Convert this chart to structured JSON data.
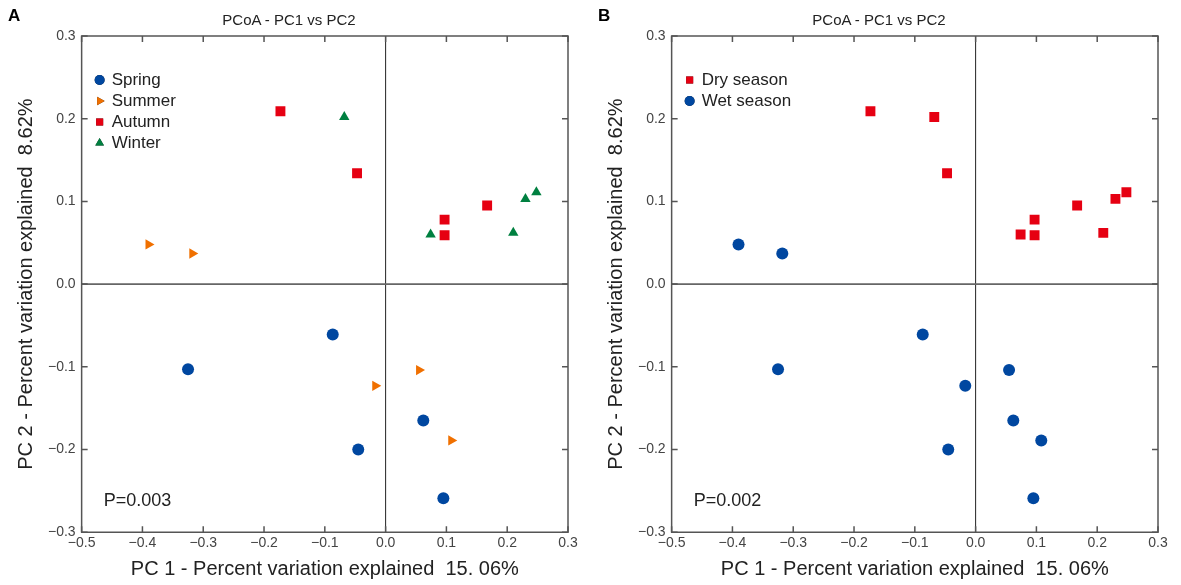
{
  "chart_data": [
    {
      "type": "scatter",
      "title": "PCoA - PC1 vs PC2",
      "xlabel": "PC 1 - Percent variation explained  15. 06%",
      "ylabel": "PC 2 - Percent variation explained  8.62%",
      "annotations": [
        "A",
        "P=0.003"
      ],
      "legend": "top left",
      "grid": false,
      "xlim": [
        -0.5,
        0.3
      ],
      "xticks": [
        {
          "value": -0.5,
          "label": "−0.5"
        },
        {
          "value": -0.4,
          "label": "−0.4"
        },
        {
          "value": -0.3,
          "label": "−0.3"
        },
        {
          "value": -0.2,
          "label": "−0.2"
        },
        {
          "value": -0.1,
          "label": "−0.1"
        },
        {
          "value": 0,
          "label": "0.0"
        },
        0.1,
        0.2,
        0.3
      ],
      "ylim": [
        -0.3,
        0.3
      ],
      "yticks": [
        {
          "value": -0.3,
          "label": "−0.3"
        },
        {
          "value": -0.2,
          "label": "−0.2"
        },
        {
          "value": -0.1,
          "label": "−0.1"
        },
        {
          "value": 0,
          "label": "0.0"
        },
        0.1,
        0.2,
        0.3
      ],
      "ref_lines": [
        {
          "axis": "x",
          "value": 0
        },
        {
          "axis": "y",
          "value": 0
        }
      ],
      "series": [
        {
          "name": "Spring",
          "color": "#0047a0",
          "marker": "circle",
          "x": [
            -0.325,
            -0.087,
            -0.045,
            0.062,
            0.095
          ],
          "values": [
            -0.103,
            -0.061,
            -0.2,
            -0.165,
            -0.259
          ]
        },
        {
          "name": "Summer",
          "color": "#f07000",
          "marker": "triangle-right",
          "x": [
            -0.39,
            -0.318,
            -0.017,
            0.055,
            0.108
          ],
          "values": [
            0.048,
            0.037,
            -0.123,
            -0.104,
            -0.189
          ]
        },
        {
          "name": "Autumn",
          "color": "#e60012",
          "marker": "square",
          "x": [
            -0.173,
            -0.047,
            0.097,
            0.097,
            0.167
          ],
          "values": [
            0.209,
            0.134,
            0.078,
            0.059,
            0.095
          ]
        },
        {
          "name": "Winter",
          "color": "#008040",
          "marker": "triangle",
          "x": [
            -0.068,
            0.074,
            0.21,
            0.23,
            0.248
          ],
          "values": [
            0.202,
            0.06,
            0.062,
            0.103,
            0.111
          ]
        }
      ]
    },
    {
      "type": "scatter",
      "title": "PCoA - PC1 vs PC2",
      "xlabel": "PC 1 - Percent variation explained  15. 06%",
      "ylabel": "PC 2 - Percent variation explained  8.62%",
      "annotations": [
        "B",
        "P=0.002"
      ],
      "legend": "top left",
      "grid": false,
      "xlim": [
        -0.5,
        0.3
      ],
      "xticks": [
        {
          "value": -0.5,
          "label": "−0.5"
        },
        {
          "value": -0.4,
          "label": "−0.4"
        },
        {
          "value": -0.3,
          "label": "−0.3"
        },
        {
          "value": -0.2,
          "label": "−0.2"
        },
        {
          "value": -0.1,
          "label": "−0.1"
        },
        {
          "value": 0,
          "label": "0.0"
        },
        0.1,
        0.2,
        0.3
      ],
      "ylim": [
        -0.3,
        0.3
      ],
      "yticks": [
        {
          "value": -0.3,
          "label": "−0.3"
        },
        {
          "value": -0.2,
          "label": "−0.2"
        },
        {
          "value": -0.1,
          "label": "−0.1"
        },
        {
          "value": 0,
          "label": "0.0"
        },
        0.1,
        0.2,
        0.3
      ],
      "ref_lines": [
        {
          "axis": "x",
          "value": 0
        },
        {
          "axis": "y",
          "value": 0
        }
      ],
      "series": [
        {
          "name": "Dry season",
          "color": "#e60012",
          "marker": "square",
          "x": [
            -0.173,
            -0.068,
            -0.047,
            0.074,
            0.097,
            0.097,
            0.167,
            0.21,
            0.23,
            0.248
          ],
          "values": [
            0.209,
            0.202,
            0.134,
            0.06,
            0.078,
            0.059,
            0.095,
            0.062,
            0.103,
            0.111
          ]
        },
        {
          "name": "Wet season",
          "color": "#0047a0",
          "marker": "circle",
          "x": [
            -0.39,
            -0.318,
            -0.325,
            -0.087,
            -0.017,
            -0.045,
            0.055,
            0.062,
            0.108,
            0.095
          ],
          "values": [
            0.048,
            0.037,
            -0.103,
            -0.061,
            -0.123,
            -0.2,
            -0.104,
            -0.165,
            -0.189,
            -0.259
          ]
        }
      ]
    }
  ]
}
